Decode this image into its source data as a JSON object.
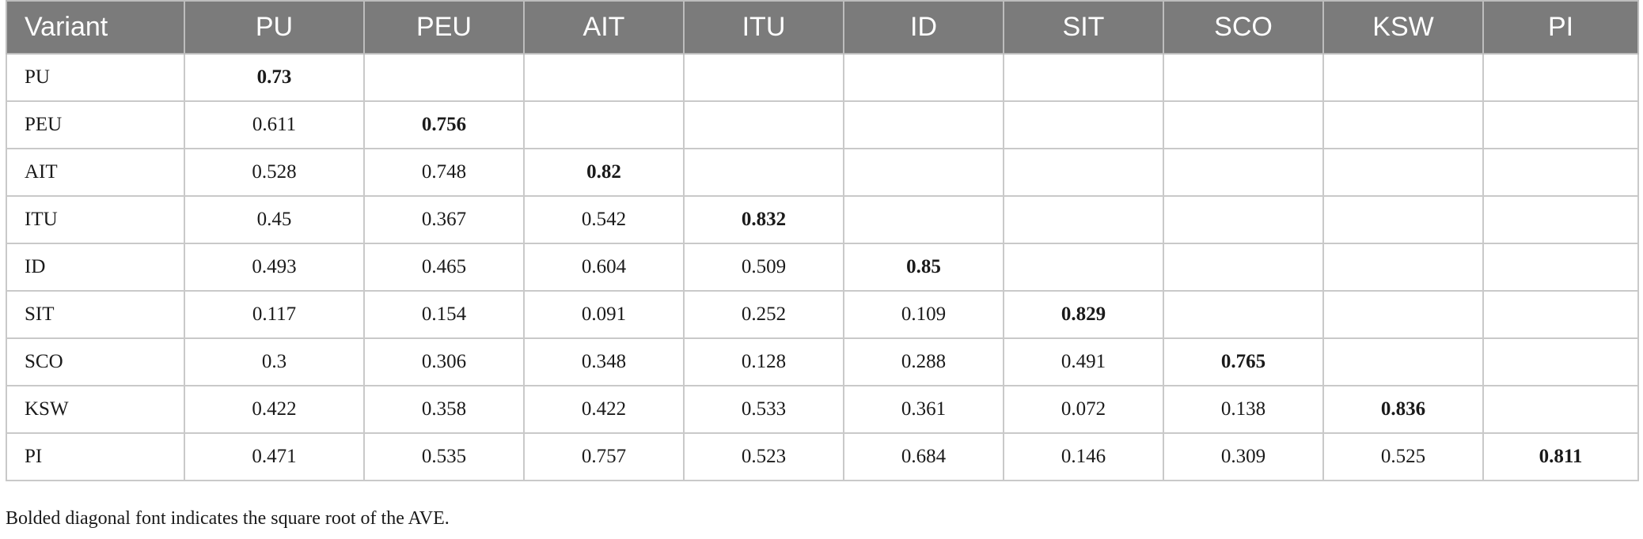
{
  "table": {
    "headers": [
      "Variant",
      "PU",
      "PEU",
      "AIT",
      "ITU",
      "ID",
      "SIT",
      "SCO",
      "KSW",
      "PI"
    ],
    "rows": [
      {
        "label": "PU",
        "cells": [
          "0.73",
          "",
          "",
          "",
          "",
          "",
          "",
          "",
          ""
        ]
      },
      {
        "label": "PEU",
        "cells": [
          "0.611",
          "0.756",
          "",
          "",
          "",
          "",
          "",
          "",
          ""
        ]
      },
      {
        "label": "AIT",
        "cells": [
          "0.528",
          "0.748",
          "0.82",
          "",
          "",
          "",
          "",
          "",
          ""
        ]
      },
      {
        "label": "ITU",
        "cells": [
          "0.45",
          "0.367",
          "0.542",
          "0.832",
          "",
          "",
          "",
          "",
          ""
        ]
      },
      {
        "label": "ID",
        "cells": [
          "0.493",
          "0.465",
          "0.604",
          "0.509",
          "0.85",
          "",
          "",
          "",
          ""
        ]
      },
      {
        "label": "SIT",
        "cells": [
          "0.117",
          "0.154",
          "0.091",
          "0.252",
          "0.109",
          "0.829",
          "",
          "",
          ""
        ]
      },
      {
        "label": "SCO",
        "cells": [
          "0.3",
          "0.306",
          "0.348",
          "0.128",
          "0.288",
          "0.491",
          "0.765",
          "",
          ""
        ]
      },
      {
        "label": "KSW",
        "cells": [
          "0.422",
          "0.358",
          "0.422",
          "0.533",
          "0.361",
          "0.072",
          "0.138",
          "0.836",
          ""
        ]
      },
      {
        "label": "PI",
        "cells": [
          "0.471",
          "0.535",
          "0.757",
          "0.523",
          "0.684",
          "0.146",
          "0.309",
          "0.525",
          "0.811"
        ]
      }
    ]
  },
  "footnote": "Bolded diagonal font indicates the square root of the AVE.",
  "colors": {
    "header_background": "#7b7b7b",
    "header_text": "#ffffff",
    "border": "#c9c9c9"
  }
}
